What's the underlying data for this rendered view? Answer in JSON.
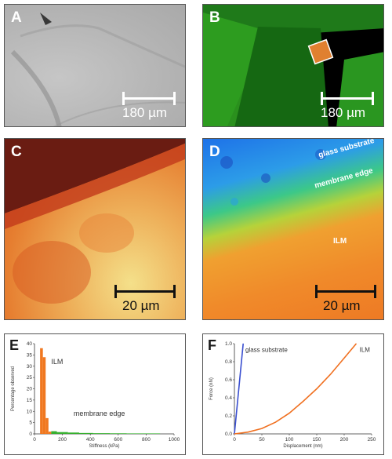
{
  "panels": {
    "A": {
      "label": "A",
      "scale_bar": "180 µm"
    },
    "B": {
      "label": "B",
      "scale_bar": "180 µm"
    },
    "C": {
      "label": "C",
      "scale_bar": "20 µm"
    },
    "D": {
      "label": "D",
      "scale_bar": "20 µm",
      "annotations": {
        "glass": "glass substrate",
        "edge": "membrane edge",
        "ilm": "ILM"
      }
    }
  },
  "chart_data": [
    {
      "panel": "E",
      "type": "bar",
      "xlabel": "Stiffness (kPa)",
      "ylabel": "Percentage observed",
      "xlim": [
        0,
        1000
      ],
      "ylim": [
        0,
        40
      ],
      "xticks": [
        0,
        200,
        400,
        600,
        800,
        1000
      ],
      "yticks": [
        0,
        5,
        10,
        15,
        20,
        25,
        30,
        35,
        40
      ],
      "series": [
        {
          "name": "ILM",
          "color": "#f07820",
          "bins": [
            [
              40,
              60,
              38
            ],
            [
              60,
              80,
              34
            ],
            [
              80,
              100,
              7
            ],
            [
              100,
              120,
              1
            ]
          ]
        },
        {
          "name": "membrane edge",
          "color": "#38b030",
          "bins": [
            [
              120,
              160,
              1.2
            ],
            [
              160,
              240,
              0.8
            ],
            [
              240,
              320,
              0.6
            ],
            [
              320,
              420,
              0.4
            ],
            [
              420,
              540,
              0.3
            ],
            [
              540,
              660,
              0.25
            ],
            [
              660,
              780,
              0.2
            ],
            [
              780,
              900,
              0.2
            ]
          ]
        }
      ],
      "annotations": [
        {
          "text": "ILM",
          "x": 120,
          "y": 31
        },
        {
          "text": "membrane edge",
          "x": 280,
          "y": 8
        }
      ]
    },
    {
      "panel": "F",
      "type": "line",
      "xlabel": "Displacement (nm)",
      "ylabel": "Force (nN)",
      "xlim": [
        0,
        250
      ],
      "ylim": [
        0,
        1.0
      ],
      "xticks": [
        0,
        50,
        100,
        150,
        200,
        250
      ],
      "yticks": [
        0,
        0.2,
        0.4,
        0.6,
        0.8,
        1.0
      ],
      "series": [
        {
          "name": "glass substrate",
          "color": "#3a4fd0",
          "x": [
            0,
            4,
            8,
            12,
            16
          ],
          "y": [
            0,
            0.25,
            0.5,
            0.75,
            1.0
          ]
        },
        {
          "name": "ILM",
          "color": "#f07020",
          "x": [
            0,
            25,
            50,
            75,
            100,
            125,
            150,
            175,
            200,
            222
          ],
          "y": [
            0,
            0.02,
            0.06,
            0.13,
            0.23,
            0.36,
            0.5,
            0.66,
            0.84,
            1.0
          ]
        }
      ],
      "annotations": [
        {
          "text": "glass substrate",
          "x": 20,
          "y": 0.91
        },
        {
          "text": "ILM",
          "x": 228,
          "y": 0.91
        }
      ]
    }
  ],
  "chart_labels": {
    "E": "E",
    "F": "F"
  }
}
